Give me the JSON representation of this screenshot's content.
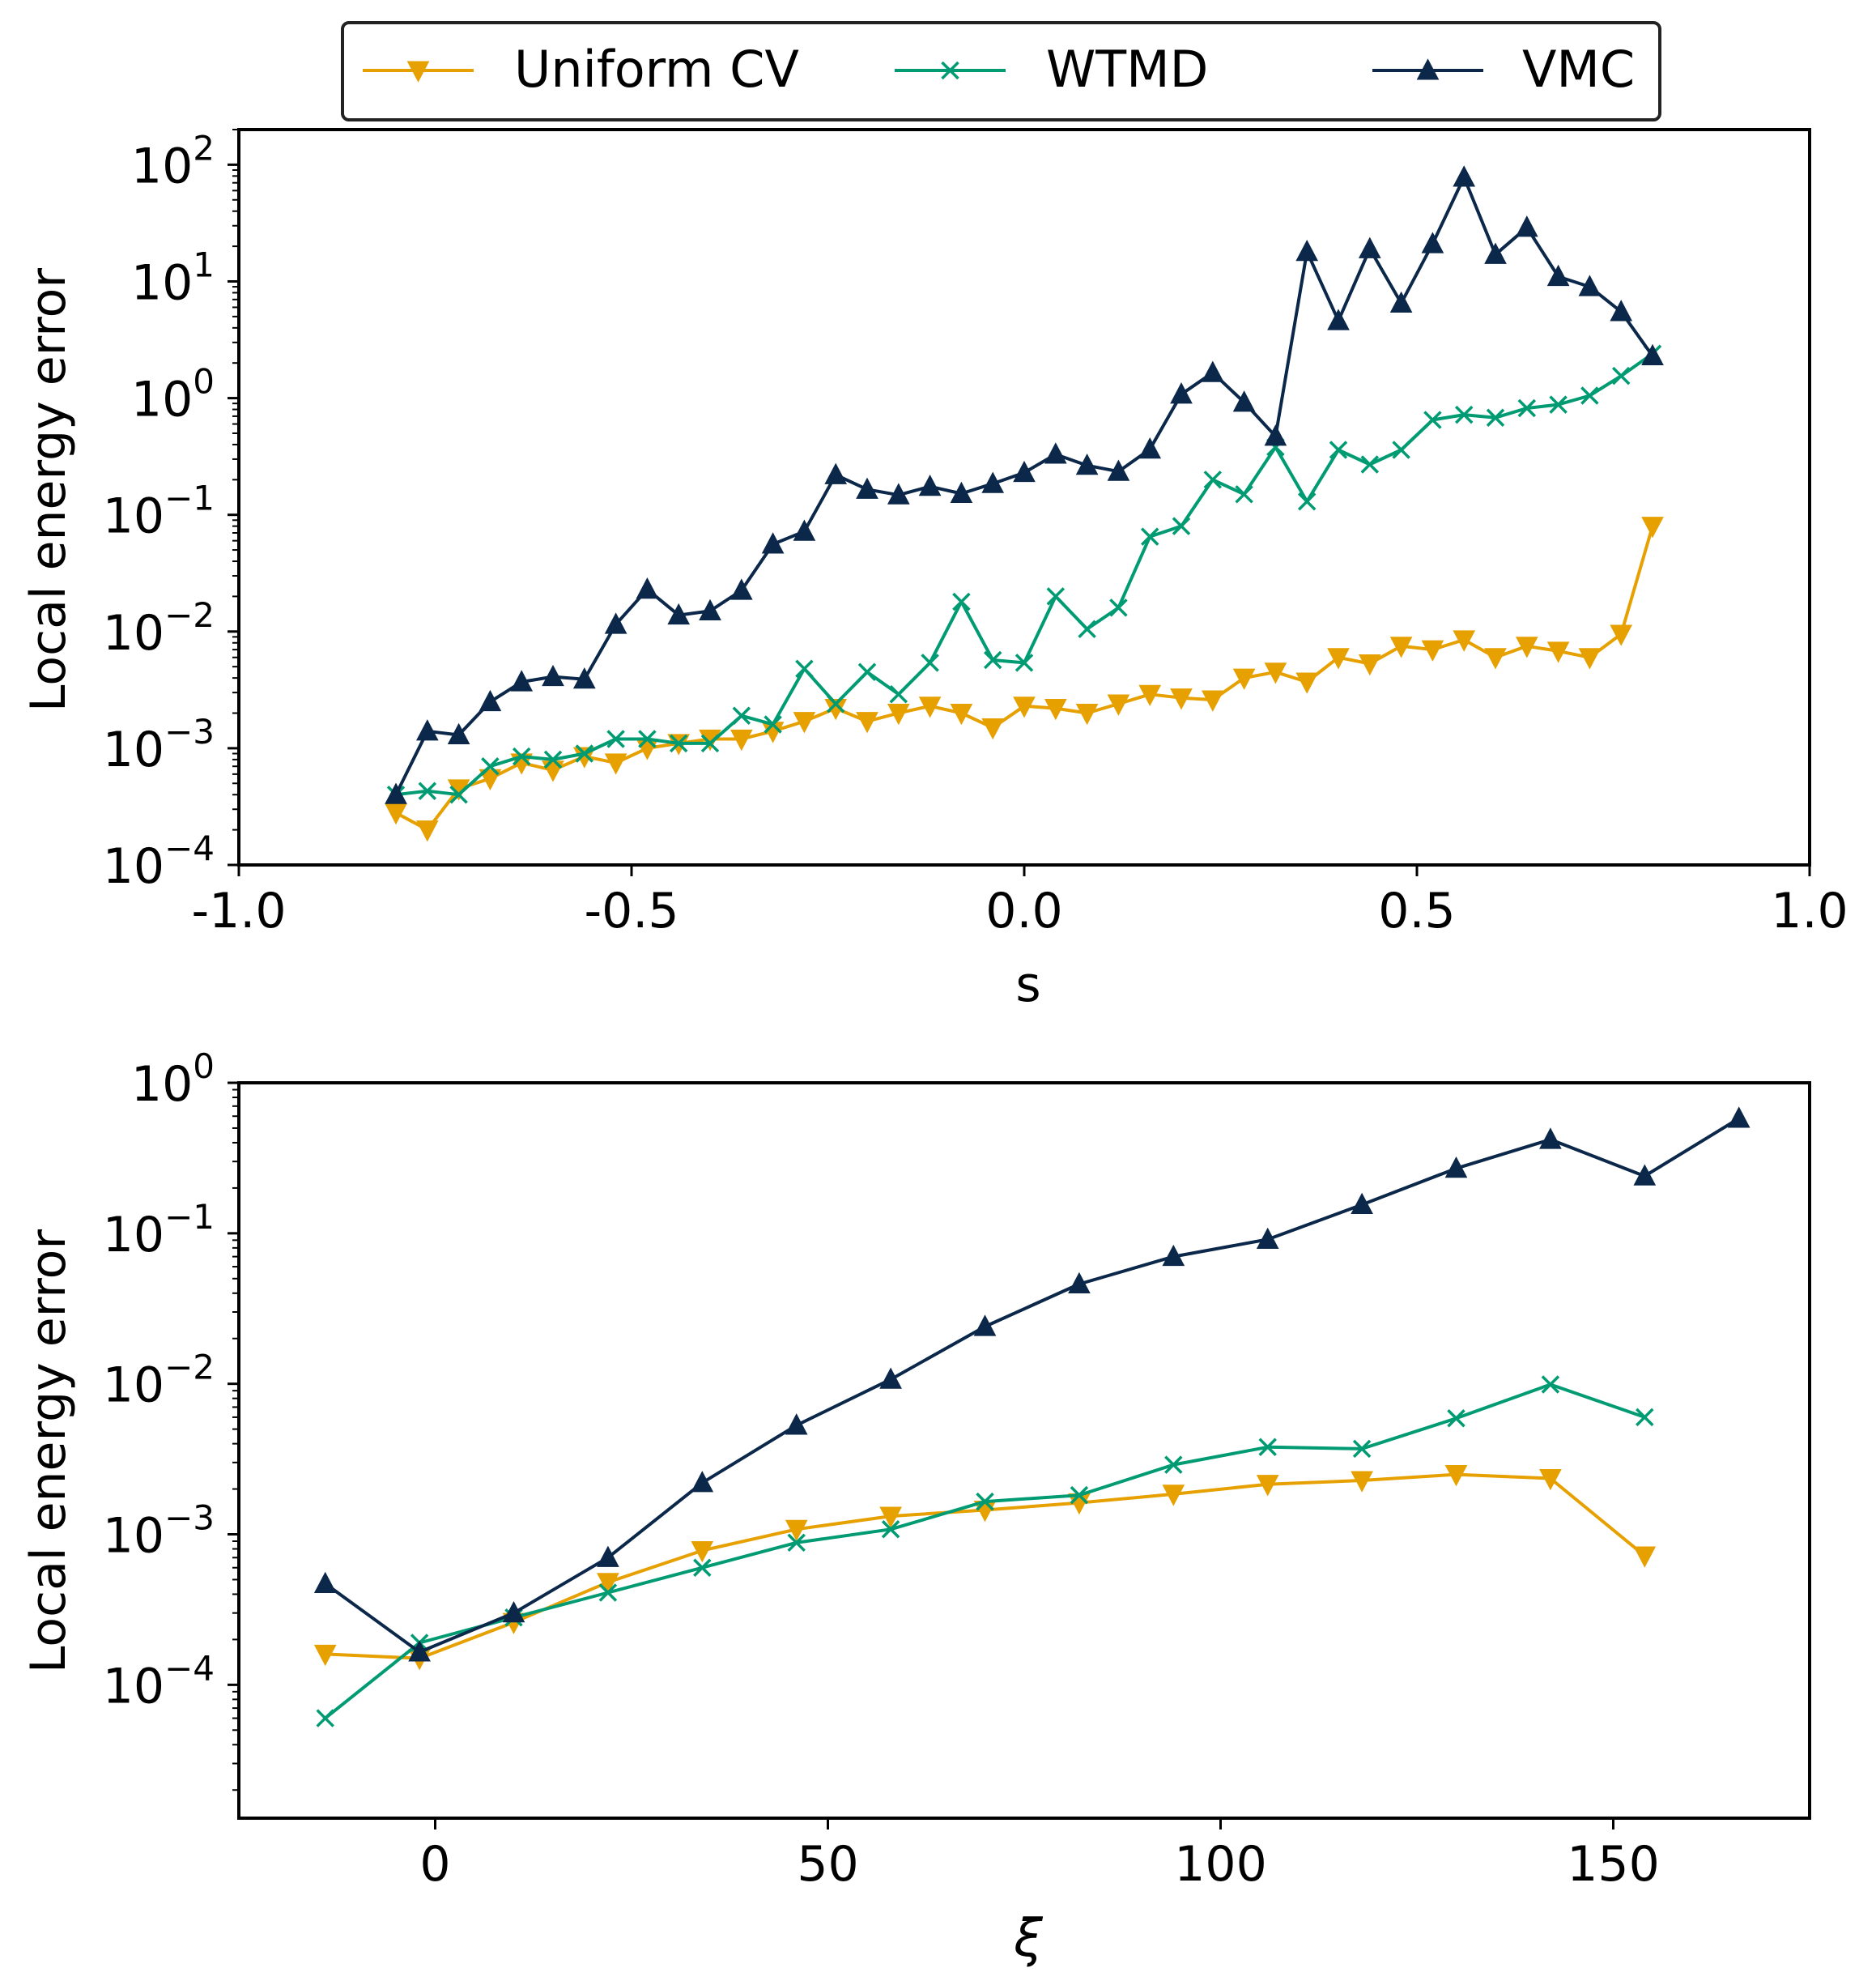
{
  "legend": {
    "entries": [
      {
        "label": "Uniform CV",
        "color": "#E6A000",
        "marker": "triangle-down"
      },
      {
        "label": "WTMD",
        "color": "#009B72",
        "marker": "x"
      },
      {
        "label": "VMC",
        "color": "#0B2749",
        "marker": "triangle-up"
      }
    ]
  },
  "chart_data": [
    {
      "type": "line",
      "title": "",
      "xlabel": "s",
      "ylabel": "Local energy error",
      "yscale": "log",
      "xlim": [
        -1.0,
        1.0
      ],
      "ylim": [
        0.0001,
        200
      ],
      "xticks": [
        -1.0,
        -0.5,
        0.0,
        0.5,
        1.0
      ],
      "xtick_labels": [
        "-1.0",
        "-0.5",
        "0.0",
        "0.5",
        "1.0"
      ],
      "ytick_exponents": [
        -4,
        -3,
        -2,
        -1,
        0,
        1,
        2
      ],
      "ytick_base": "10",
      "x": [
        -0.8,
        -0.76,
        -0.72,
        -0.68,
        -0.64,
        -0.6,
        -0.56,
        -0.52,
        -0.48,
        -0.44,
        -0.4,
        -0.36,
        -0.32,
        -0.28,
        -0.24,
        -0.2,
        -0.16,
        -0.12,
        -0.08,
        -0.04,
        0.0,
        0.04,
        0.08,
        0.12,
        0.16,
        0.2,
        0.24,
        0.28,
        0.32,
        0.36,
        0.4,
        0.44,
        0.48,
        0.52,
        0.56,
        0.6,
        0.64,
        0.68,
        0.72,
        0.76,
        0.8
      ],
      "series": [
        {
          "name": "Uniform CV",
          "values": [
            0.00028,
            0.0002,
            0.00045,
            0.00055,
            0.00075,
            0.00065,
            0.00085,
            0.00075,
            0.001,
            0.0011,
            0.0012,
            0.0012,
            0.0014,
            0.0017,
            0.0022,
            0.0017,
            0.002,
            0.0023,
            0.002,
            0.0015,
            0.0023,
            0.0022,
            0.002,
            0.0024,
            0.0029,
            0.0027,
            0.0026,
            0.004,
            0.0045,
            0.0037,
            0.006,
            0.0053,
            0.0075,
            0.007,
            0.0085,
            0.006,
            0.0075,
            0.0068,
            0.006,
            0.0095,
            0.08
          ]
        },
        {
          "name": "WTMD",
          "values": [
            0.0004,
            0.00043,
            0.0004,
            0.0007,
            0.00085,
            0.0008,
            0.0009,
            0.0012,
            0.0012,
            0.0011,
            0.0011,
            0.0019,
            0.0016,
            0.0048,
            0.0024,
            0.0045,
            0.0029,
            0.0054,
            0.018,
            0.0057,
            0.0054,
            0.02,
            0.0105,
            0.016,
            0.065,
            0.08,
            0.2,
            0.15,
            0.38,
            0.13,
            0.36,
            0.27,
            0.36,
            0.65,
            0.72,
            0.68,
            0.82,
            0.88,
            1.05,
            1.55,
            2.4
          ]
        },
        {
          "name": "VMC",
          "values": [
            0.0004,
            0.0014,
            0.0013,
            0.0025,
            0.0037,
            0.0041,
            0.0039,
            0.0115,
            0.023,
            0.0138,
            0.015,
            0.0225,
            0.056,
            0.072,
            0.22,
            0.165,
            0.148,
            0.175,
            0.152,
            0.185,
            0.23,
            0.33,
            0.265,
            0.235,
            0.365,
            1.08,
            1.65,
            0.92,
            0.47,
            18,
            4.6,
            19,
            6.5,
            21,
            78,
            17,
            29,
            11,
            9,
            5.5,
            2.3
          ]
        }
      ]
    },
    {
      "type": "line",
      "title": "",
      "xlabel": "ξ",
      "ylabel": "Local energy error",
      "yscale": "log",
      "xlim": [
        -25,
        175
      ],
      "ylim": [
        1.3e-05,
        1.0
      ],
      "xticks": [
        0,
        50,
        100,
        150
      ],
      "xtick_labels": [
        "0",
        "50",
        "100",
        "150"
      ],
      "ytick_exponents": [
        -4,
        -3,
        -2,
        -1,
        0
      ],
      "ytick_base": "10",
      "series": [
        {
          "name": "Uniform CV",
          "x": [
            -14,
            -2,
            10,
            22,
            34,
            46,
            58,
            70,
            82,
            94,
            106,
            118,
            130,
            142,
            154
          ],
          "values": [
            0.00016,
            0.00015,
            0.00026,
            0.00048,
            0.00078,
            0.00108,
            0.00132,
            0.00145,
            0.00162,
            0.00185,
            0.00215,
            0.00228,
            0.0025,
            0.00235,
            0.00072
          ]
        },
        {
          "name": "WTMD",
          "x": [
            -14,
            -2,
            10,
            22,
            34,
            46,
            58,
            70,
            82,
            94,
            106,
            118,
            130,
            142,
            154
          ],
          "values": [
            6e-05,
            0.00019,
            0.00028,
            0.00041,
            0.0006,
            0.00088,
            0.00108,
            0.00165,
            0.00182,
            0.0029,
            0.0038,
            0.0037,
            0.0059,
            0.0099,
            0.006
          ]
        },
        {
          "name": "VMC",
          "x": [
            -14,
            -2,
            10,
            22,
            34,
            46,
            58,
            70,
            82,
            94,
            106,
            118,
            130,
            142,
            154,
            166
          ],
          "values": [
            0.00047,
            0.000165,
            0.0003,
            0.0007,
            0.0022,
            0.0053,
            0.0107,
            0.024,
            0.046,
            0.07,
            0.091,
            0.155,
            0.27,
            0.42,
            0.24,
            0.58
          ]
        }
      ]
    }
  ]
}
